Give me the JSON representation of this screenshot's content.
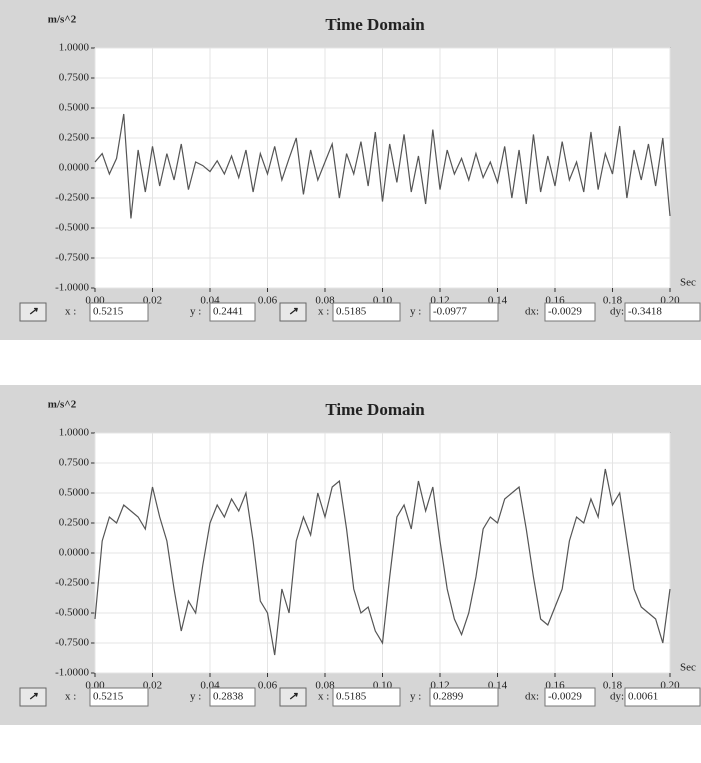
{
  "chart_data": [
    {
      "type": "line",
      "title": "Time Domain",
      "ylabel": "m/s^2",
      "xlabel": "Sec",
      "x": [
        0,
        0.0025,
        0.005,
        0.0075,
        0.01,
        0.0125,
        0.015,
        0.0175,
        0.02,
        0.0225,
        0.025,
        0.0275,
        0.03,
        0.0325,
        0.035,
        0.0375,
        0.04,
        0.0425,
        0.045,
        0.0475,
        0.05,
        0.0525,
        0.055,
        0.0575,
        0.06,
        0.0625,
        0.065,
        0.0675,
        0.07,
        0.0725,
        0.075,
        0.0775,
        0.08,
        0.0825,
        0.085,
        0.0875,
        0.09,
        0.0925,
        0.095,
        0.0975,
        0.1,
        0.1025,
        0.105,
        0.1075,
        0.11,
        0.1125,
        0.115,
        0.1175,
        0.12,
        0.1225,
        0.125,
        0.1275,
        0.13,
        0.1325,
        0.135,
        0.1375,
        0.14,
        0.1425,
        0.145,
        0.1475,
        0.15,
        0.1525,
        0.155,
        0.1575,
        0.16,
        0.1625,
        0.165,
        0.1675,
        0.17,
        0.1725,
        0.175,
        0.1775,
        0.18,
        0.1825,
        0.185,
        0.1875,
        0.19,
        0.1925,
        0.195,
        0.1975,
        0.2
      ],
      "series": [
        {
          "color": "#555555",
          "values": [
            0.05,
            0.12,
            -0.05,
            0.08,
            0.45,
            -0.42,
            0.15,
            -0.2,
            0.18,
            -0.15,
            0.12,
            -0.1,
            0.2,
            -0.18,
            0.05,
            0.02,
            -0.03,
            0.06,
            -0.05,
            0.1,
            -0.08,
            0.15,
            -0.2,
            0.12,
            -0.05,
            0.18,
            -0.1,
            0.08,
            0.25,
            -0.22,
            0.15,
            -0.1,
            0.05,
            0.2,
            -0.25,
            0.12,
            -0.05,
            0.22,
            -0.15,
            0.3,
            -0.28,
            0.2,
            -0.12,
            0.28,
            -0.2,
            0.1,
            -0.3,
            0.32,
            -0.18,
            0.15,
            -0.05,
            0.08,
            -0.1,
            0.12,
            -0.08,
            0.05,
            -0.12,
            0.18,
            -0.25,
            0.15,
            -0.3,
            0.28,
            -0.2,
            0.1,
            -0.15,
            0.22,
            -0.1,
            0.05,
            -0.2,
            0.3,
            -0.18,
            0.12,
            -0.05,
            0.35,
            -0.25,
            0.15,
            -0.1,
            0.2,
            -0.15,
            0.25,
            -0.4
          ]
        }
      ],
      "xlim": [
        0,
        0.2
      ],
      "ylim": [
        -1,
        1
      ],
      "xticks": [
        {
          "value": 0,
          "label": "0.00"
        },
        0.02,
        0.04,
        0.06,
        0.08,
        {
          "value": 0.1,
          "label": "0.10"
        },
        0.12,
        0.14,
        0.16,
        0.18,
        {
          "value": 0.2,
          "label": "0.20"
        }
      ],
      "yticks": [
        {
          "value": 1,
          "label": "1.0000"
        },
        {
          "value": 0.75,
          "label": "0.7500"
        },
        {
          "value": 0.5,
          "label": "0.5000"
        },
        {
          "value": 0.25,
          "label": "0.2500"
        },
        {
          "value": 0,
          "label": "0.0000"
        },
        {
          "value": -0.25,
          "label": "-0.2500"
        },
        {
          "value": -0.5,
          "label": "-0.5000"
        },
        {
          "value": -0.75,
          "label": "-0.7500"
        },
        {
          "value": -1,
          "label": "-1.0000"
        }
      ],
      "grid": true,
      "cursor_readouts": [
        {
          "label": "x :",
          "value": "0.5215"
        },
        {
          "label": "y :",
          "value": "0.2441"
        },
        {
          "label": "x :",
          "value": "0.5185"
        },
        {
          "label": "y :",
          "value": "-0.0977"
        },
        {
          "label": "dx:",
          "value": "-0.0029"
        },
        {
          "label": "dy:",
          "value": "-0.3418"
        }
      ]
    },
    {
      "type": "line",
      "title": "Time Domain",
      "ylabel": "m/s^2",
      "xlabel": "Sec",
      "x": [
        0,
        0.0025,
        0.005,
        0.0075,
        0.01,
        0.0125,
        0.015,
        0.0175,
        0.02,
        0.0225,
        0.025,
        0.0275,
        0.03,
        0.0325,
        0.035,
        0.0375,
        0.04,
        0.0425,
        0.045,
        0.0475,
        0.05,
        0.0525,
        0.055,
        0.0575,
        0.06,
        0.0625,
        0.065,
        0.0675,
        0.07,
        0.0725,
        0.075,
        0.0775,
        0.08,
        0.0825,
        0.085,
        0.0875,
        0.09,
        0.0925,
        0.095,
        0.0975,
        0.1,
        0.1025,
        0.105,
        0.1075,
        0.11,
        0.1125,
        0.115,
        0.1175,
        0.12,
        0.1225,
        0.125,
        0.1275,
        0.13,
        0.1325,
        0.135,
        0.1375,
        0.14,
        0.1425,
        0.145,
        0.1475,
        0.15,
        0.1525,
        0.155,
        0.1575,
        0.16,
        0.1625,
        0.165,
        0.1675,
        0.17,
        0.1725,
        0.175,
        0.1775,
        0.18,
        0.1825,
        0.185,
        0.1875,
        0.19,
        0.1925,
        0.195,
        0.1975,
        0.2
      ],
      "series": [
        {
          "color": "#555555",
          "values": [
            -0.55,
            0.1,
            0.3,
            0.25,
            0.4,
            0.35,
            0.3,
            0.2,
            0.55,
            0.3,
            0.1,
            -0.3,
            -0.65,
            -0.4,
            -0.5,
            -0.1,
            0.25,
            0.4,
            0.3,
            0.45,
            0.35,
            0.5,
            0.1,
            -0.4,
            -0.5,
            -0.85,
            -0.3,
            -0.5,
            0.1,
            0.3,
            0.15,
            0.5,
            0.3,
            0.55,
            0.6,
            0.2,
            -0.3,
            -0.5,
            -0.45,
            -0.65,
            -0.75,
            -0.2,
            0.3,
            0.4,
            0.2,
            0.6,
            0.35,
            0.55,
            0.1,
            -0.3,
            -0.55,
            -0.68,
            -0.5,
            -0.2,
            0.2,
            0.3,
            0.25,
            0.45,
            0.5,
            0.55,
            0.2,
            -0.2,
            -0.55,
            -0.6,
            -0.45,
            -0.3,
            0.1,
            0.3,
            0.25,
            0.45,
            0.3,
            0.7,
            0.4,
            0.5,
            0.1,
            -0.3,
            -0.45,
            -0.5,
            -0.55,
            -0.75,
            -0.3
          ]
        }
      ],
      "xlim": [
        0,
        0.2
      ],
      "ylim": [
        -1,
        1
      ],
      "xticks": [
        {
          "value": 0,
          "label": "0.00"
        },
        0.02,
        0.04,
        0.06,
        0.08,
        {
          "value": 0.1,
          "label": "0.10"
        },
        0.12,
        0.14,
        0.16,
        0.18,
        {
          "value": 0.2,
          "label": "0.20"
        }
      ],
      "yticks": [
        {
          "value": 1,
          "label": "1.0000"
        },
        {
          "value": 0.75,
          "label": "0.7500"
        },
        {
          "value": 0.5,
          "label": "0.5000"
        },
        {
          "value": 0.25,
          "label": "0.2500"
        },
        {
          "value": 0,
          "label": "0.0000"
        },
        {
          "value": -0.25,
          "label": "-0.2500"
        },
        {
          "value": -0.5,
          "label": "-0.5000"
        },
        {
          "value": -0.75,
          "label": "-0.7500"
        },
        {
          "value": -1,
          "label": "-1.0000"
        }
      ],
      "grid": true,
      "cursor_readouts": [
        {
          "label": "x :",
          "value": "0.5215"
        },
        {
          "label": "y :",
          "value": "0.2838"
        },
        {
          "label": "x :",
          "value": "0.5185"
        },
        {
          "label": "y :",
          "value": "0.2899"
        },
        {
          "label": "dx:",
          "value": "-0.0029"
        },
        {
          "label": "dy:",
          "value": "0.0061"
        }
      ]
    }
  ]
}
